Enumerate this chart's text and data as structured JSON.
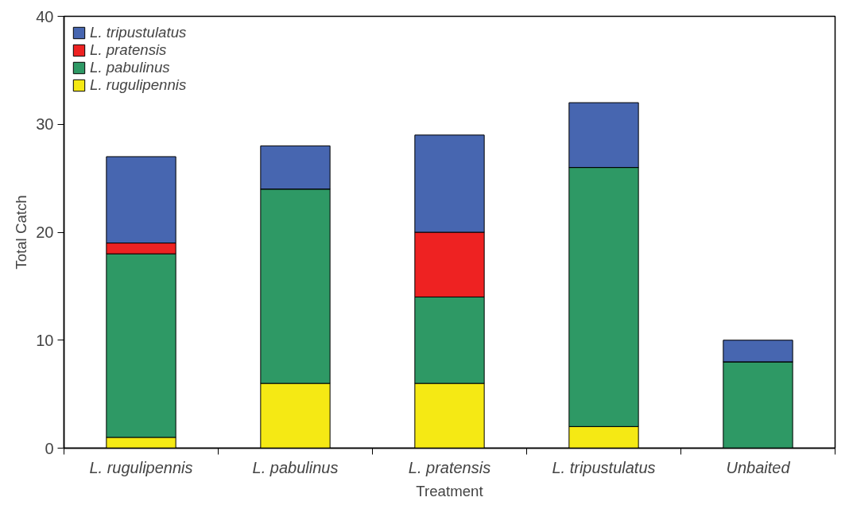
{
  "chart_data": {
    "type": "bar",
    "stacked": true,
    "xlabel": "Treatment",
    "ylabel": "Total Catch",
    "categories": [
      "L. rugulipennis",
      "L. pabulinus",
      "L. pratensis",
      "L. tripustulatus",
      "Unbaited"
    ],
    "series": [
      {
        "name": "L. rugulipennis",
        "color": "#f5e914",
        "values": [
          1,
          6,
          6,
          2,
          0
        ]
      },
      {
        "name": "L. pabulinus",
        "color": "#2e9965",
        "values": [
          17,
          18,
          8,
          24,
          8
        ]
      },
      {
        "name": "L. pratensis",
        "color": "#ee2222",
        "values": [
          1,
          0,
          6,
          0,
          0
        ]
      },
      {
        "name": "L. tripustulatus",
        "color": "#4766b0",
        "values": [
          8,
          4,
          9,
          6,
          2
        ]
      }
    ],
    "ylim": [
      0,
      40
    ],
    "yticks": [
      0,
      10,
      20,
      30,
      40
    ],
    "grid": false,
    "legend": "top left"
  }
}
